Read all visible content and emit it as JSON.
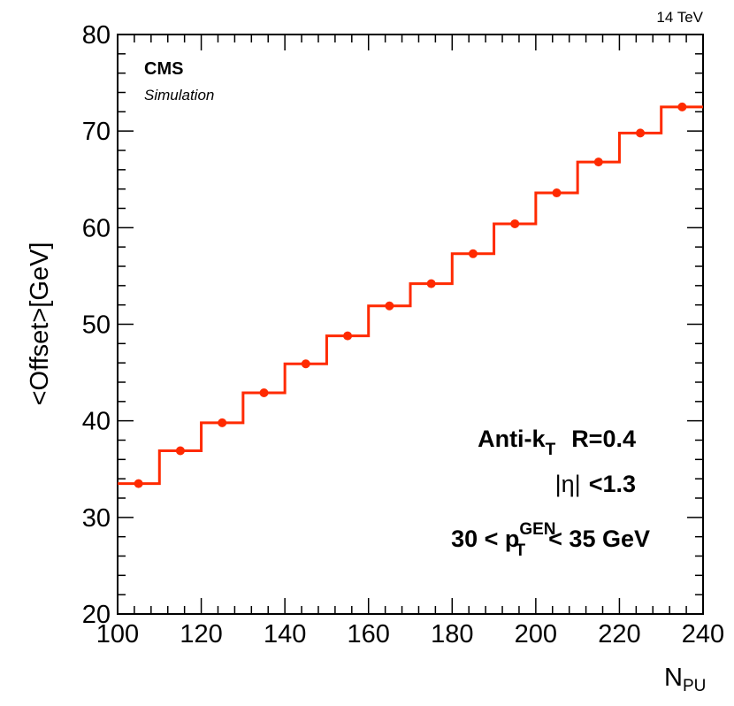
{
  "chart_data": {
    "type": "line",
    "style": "step-histogram-with-markers",
    "x_edges": [
      100,
      110,
      120,
      130,
      140,
      150,
      160,
      170,
      180,
      190,
      200,
      210,
      220,
      230,
      240
    ],
    "x": [
      105,
      115,
      125,
      135,
      145,
      155,
      165,
      175,
      185,
      195,
      205,
      215,
      225,
      235
    ],
    "values": [
      33.5,
      36.9,
      39.8,
      42.9,
      45.9,
      48.8,
      51.9,
      54.2,
      57.3,
      60.4,
      63.6,
      66.8,
      69.8,
      72.5
    ],
    "xlim": [
      100,
      240
    ],
    "ylim": [
      20,
      80
    ],
    "xticks": [
      100,
      120,
      140,
      160,
      180,
      200,
      220,
      240
    ],
    "yticks": [
      20,
      30,
      40,
      50,
      60,
      70,
      80
    ],
    "xlabel": {
      "main": "N",
      "sub": "PU"
    },
    "ylabel": "<Offset>[GeV]",
    "series_color": "#ff2a00",
    "grid": false
  },
  "labels": {
    "experiment": "CMS",
    "status": "Simulation",
    "energy": "14 TeV",
    "algo_main": "Anti-k",
    "algo_sub": "T",
    "algo_radius": "R=0.4",
    "eta_bars": "|η|",
    "eta_cut": "<1.3",
    "pt_low": "30 < p",
    "pt_sup": "GEN",
    "pt_sub": "T",
    "pt_high": "< 35 GeV"
  }
}
